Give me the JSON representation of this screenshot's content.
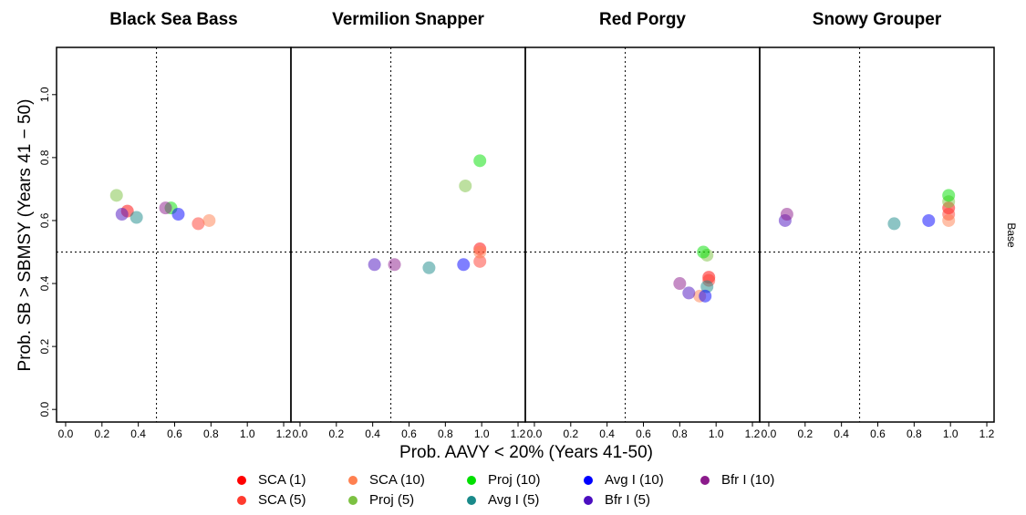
{
  "chart_data": {
    "type": "scatter",
    "x_label": "Prob. AAVY < 20% (Years 41-50)",
    "y_label": "Prob. SB > SBMSY (Years 41 − 50)",
    "strip_label": "Base",
    "xlim": [
      -0.05,
      1.24
    ],
    "ylim": [
      -0.04,
      1.15
    ],
    "xticks": [
      {
        "value": 0,
        "label": "0.0"
      },
      0.2,
      0.4,
      0.6,
      0.8,
      {
        "value": 1,
        "label": "1.0"
      },
      1.2
    ],
    "yticks": [
      {
        "value": 0,
        "label": "0.0"
      },
      0.2,
      0.4,
      0.6,
      0.8,
      {
        "value": 1,
        "label": "1.0"
      }
    ],
    "reference_x": 0.5,
    "reference_y": 0.5,
    "series": [
      {
        "name": "SCA (1)",
        "color": "#ff0000"
      },
      {
        "name": "SCA (5)",
        "color": "#ff3b2f"
      },
      {
        "name": "SCA (10)",
        "color": "#ff8050"
      },
      {
        "name": "Proj (5)",
        "color": "#7cc142"
      },
      {
        "name": "Proj (10)",
        "color": "#00e000"
      },
      {
        "name": "Avg I (5)",
        "color": "#1a8a8a"
      },
      {
        "name": "Avg I (10)",
        "color": "#0000ff"
      },
      {
        "name": "Bfr I (5)",
        "color": "#4b0fc0"
      },
      {
        "name": "Bfr I (10)",
        "color": "#8b1a8b"
      }
    ],
    "panels": [
      {
        "title": "Black Sea Bass",
        "x": [
          0.34,
          0.73,
          0.79,
          0.28,
          0.58,
          0.39,
          0.62,
          0.31,
          0.55
        ],
        "values": [
          0.63,
          0.59,
          0.6,
          0.68,
          0.64,
          0.61,
          0.62,
          0.62,
          0.64
        ]
      },
      {
        "title": "Vermilion Snapper",
        "x": [
          0.99,
          0.99,
          0.99,
          0.91,
          0.99,
          0.71,
          0.9,
          0.41,
          0.52
        ],
        "values": [
          0.51,
          0.47,
          0.5,
          0.71,
          0.79,
          0.45,
          0.46,
          0.46,
          0.46
        ]
      },
      {
        "title": "Red Porgy",
        "x": [
          0.96,
          0.96,
          0.91,
          0.95,
          0.93,
          0.95,
          0.94,
          0.85,
          0.8
        ],
        "values": [
          0.42,
          0.41,
          0.36,
          0.49,
          0.5,
          0.39,
          0.36,
          0.37,
          0.4
        ]
      },
      {
        "title": "Snowy Grouper",
        "x": [
          0.99,
          0.99,
          0.99,
          0.99,
          0.99,
          0.69,
          0.88,
          0.09,
          0.1
        ],
        "values": [
          0.64,
          0.62,
          0.6,
          0.66,
          0.68,
          0.59,
          0.6,
          0.6,
          0.62
        ]
      }
    ]
  }
}
